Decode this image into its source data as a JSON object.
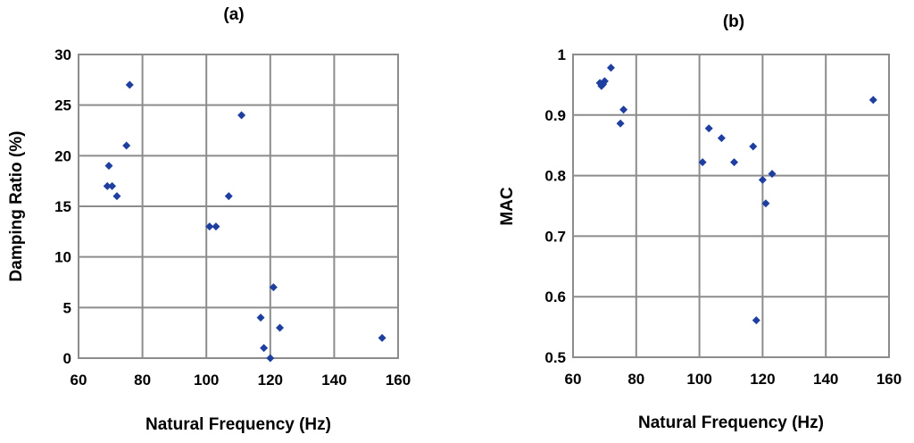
{
  "chart_data": [
    {
      "type": "scatter",
      "panel": "(a)",
      "xlabel": "Natural Frequency (Hz)",
      "ylabel": "Damping Ratio (%)",
      "xlim": [
        60,
        160
      ],
      "ylim": [
        0,
        30
      ],
      "xticks": [
        60,
        80,
        100,
        120,
        140,
        160
      ],
      "yticks": [
        0,
        5,
        10,
        15,
        20,
        25,
        30
      ],
      "grid": true,
      "marker": "diamond",
      "color": "#1f3fa0",
      "points": [
        {
          "x": 69,
          "y": 17
        },
        {
          "x": 69.5,
          "y": 19
        },
        {
          "x": 70.5,
          "y": 17
        },
        {
          "x": 72,
          "y": 16
        },
        {
          "x": 75,
          "y": 21
        },
        {
          "x": 76,
          "y": 27
        },
        {
          "x": 101,
          "y": 13
        },
        {
          "x": 103,
          "y": 13
        },
        {
          "x": 107,
          "y": 16
        },
        {
          "x": 111,
          "y": 24
        },
        {
          "x": 117,
          "y": 4
        },
        {
          "x": 118,
          "y": 1
        },
        {
          "x": 120,
          "y": 0
        },
        {
          "x": 121,
          "y": 7
        },
        {
          "x": 123,
          "y": 3
        },
        {
          "x": 155,
          "y": 2
        }
      ]
    },
    {
      "type": "scatter",
      "panel": "(b)",
      "xlabel": "Natural Frequency (Hz)",
      "ylabel": "MAC",
      "xlim": [
        60,
        160
      ],
      "ylim": [
        0.5,
        1
      ],
      "xticks": [
        60,
        80,
        100,
        120,
        140,
        160
      ],
      "yticks": [
        0.5,
        0.6,
        0.7,
        0.8,
        0.9,
        1
      ],
      "grid": true,
      "marker": "diamond",
      "color": "#1f3fa0",
      "points": [
        {
          "x": 68.5,
          "y": 0.953
        },
        {
          "x": 69,
          "y": 0.948
        },
        {
          "x": 69.5,
          "y": 0.951
        },
        {
          "x": 70,
          "y": 0.956
        },
        {
          "x": 72,
          "y": 0.978
        },
        {
          "x": 75,
          "y": 0.886
        },
        {
          "x": 76,
          "y": 0.909
        },
        {
          "x": 101,
          "y": 0.822
        },
        {
          "x": 103,
          "y": 0.878
        },
        {
          "x": 107,
          "y": 0.862
        },
        {
          "x": 111,
          "y": 0.822
        },
        {
          "x": 117,
          "y": 0.848
        },
        {
          "x": 118,
          "y": 0.561
        },
        {
          "x": 120,
          "y": 0.793
        },
        {
          "x": 121,
          "y": 0.754
        },
        {
          "x": 123,
          "y": 0.803
        },
        {
          "x": 155,
          "y": 0.925
        }
      ]
    }
  ]
}
